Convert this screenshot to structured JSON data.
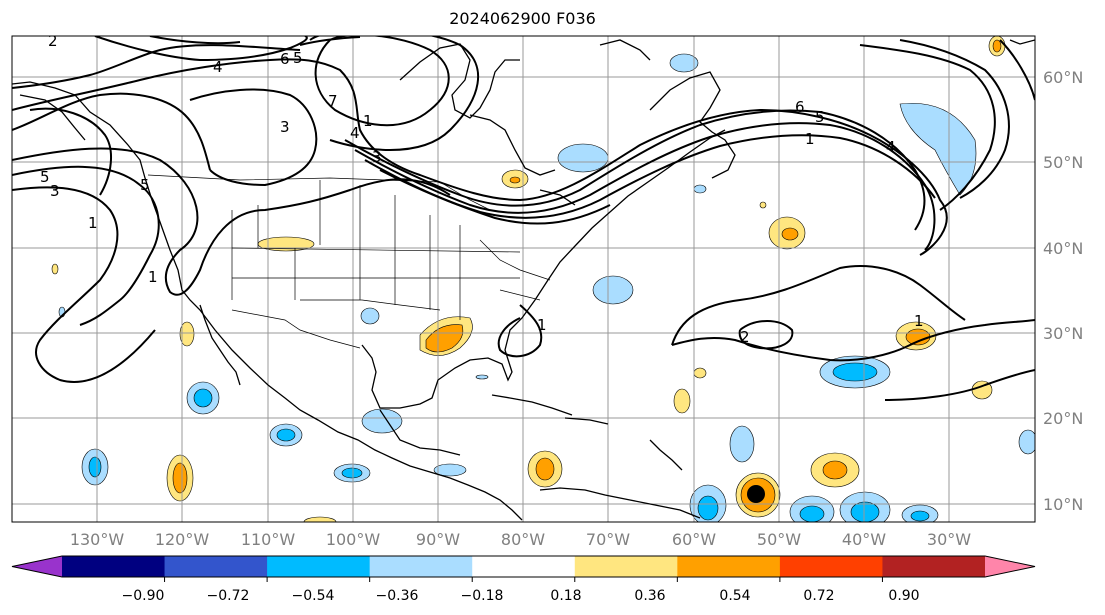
{
  "title": "2024062900 F036",
  "map": {
    "lon_labels": [
      "130°W",
      "120°W",
      "110°W",
      "100°W",
      "90°W",
      "80°W",
      "70°W",
      "60°W",
      "50°W",
      "40°W",
      "30°W"
    ],
    "lat_labels": [
      "60°N",
      "50°N",
      "40°N",
      "30°N",
      "20°N",
      "10°N"
    ],
    "contour_labels": [
      "2",
      "4",
      "6",
      "5",
      "3",
      "7",
      "4",
      "1",
      "3",
      "5",
      "6",
      "5",
      "1",
      "4",
      "3",
      "5",
      "1",
      "1",
      "2",
      "1",
      "1"
    ],
    "storm_marker_color": "#000000"
  },
  "colorbar": {
    "tick_labels": [
      "−0.90",
      "−0.72",
      "−0.54",
      "−0.36",
      "−0.18",
      "0.18",
      "0.36",
      "0.54",
      "0.72",
      "0.90"
    ],
    "colors": [
      "#9933cc",
      "#000080",
      "#3355cc",
      "#00bbff",
      "#aaddff",
      "#ffffff",
      "#ffe680",
      "#ffa000",
      "#ff4000",
      "#b22222",
      "#ff85aa"
    ]
  }
}
